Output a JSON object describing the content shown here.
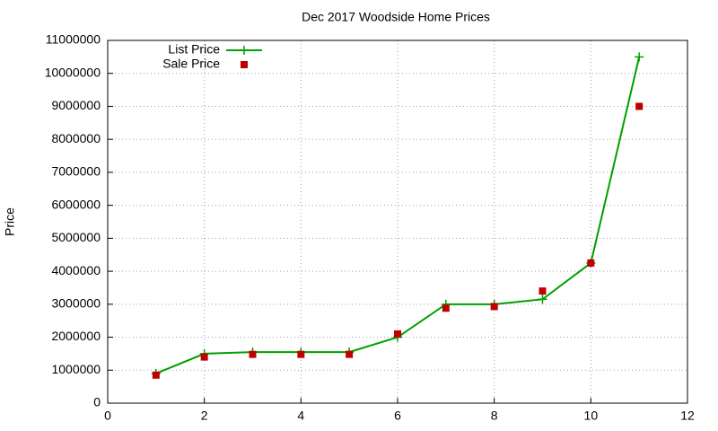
{
  "chart_data": {
    "type": "line",
    "title": "Dec 2017 Woodside Home Prices",
    "y_label": "Price",
    "x": [
      1,
      2,
      3,
      4,
      5,
      6,
      7,
      8,
      9,
      10,
      11
    ],
    "series": [
      {
        "name": "List Price",
        "color": "#00a000",
        "style": "linespoints",
        "values": [
          900000,
          1500000,
          1550000,
          1550000,
          1550000,
          2000000,
          3000000,
          3000000,
          3150000,
          4250000,
          10500000
        ]
      },
      {
        "name": "Sale Price",
        "color": "#c00000",
        "style": "points",
        "values": [
          850000,
          1400000,
          1480000,
          1480000,
          1480000,
          2100000,
          2880000,
          2930000,
          3400000,
          4250000,
          9000000
        ]
      }
    ],
    "xlim": [
      0,
      12
    ],
    "xticks": [
      0,
      2,
      4,
      6,
      8,
      10,
      12
    ],
    "ylim": [
      0,
      11000000
    ],
    "yticks": [
      0,
      1000000,
      2000000,
      3000000,
      4000000,
      5000000,
      6000000,
      7000000,
      8000000,
      9000000,
      10000000,
      11000000
    ],
    "grid": true,
    "legend": "top-left"
  }
}
